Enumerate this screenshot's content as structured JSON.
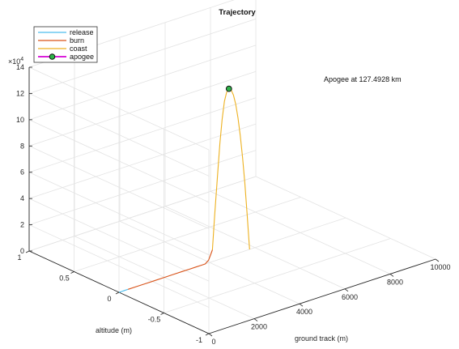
{
  "chart_data": {
    "type": "line",
    "title": "Trajectory",
    "xlabel": "ground track (m)",
    "ylabel": "altitude (m)",
    "zlabel": "",
    "z_exponent_label": "×10",
    "z_exponent_power": "4",
    "xlim": [
      0,
      10000
    ],
    "ylim": [
      -1,
      1
    ],
    "zlim": [
      0,
      140000
    ],
    "x_ticks": [
      {
        "value": 0,
        "label": "0"
      },
      {
        "value": 2000,
        "label": "2000"
      },
      {
        "value": 4000,
        "label": "4000"
      },
      {
        "value": 6000,
        "label": "6000"
      },
      {
        "value": 8000,
        "label": "8000"
      },
      {
        "value": 10000,
        "label": "10000"
      }
    ],
    "y_ticks": [
      {
        "value": -1,
        "label": "-1"
      },
      {
        "value": -0.5,
        "label": "-0.5"
      },
      {
        "value": 0,
        "label": "0"
      },
      {
        "value": 0.5,
        "label": "0.5"
      },
      {
        "value": 1,
        "label": "1"
      }
    ],
    "z_ticks": [
      {
        "value": 0,
        "label": "0"
      },
      {
        "value": 20000,
        "label": "2"
      },
      {
        "value": 40000,
        "label": "4"
      },
      {
        "value": 60000,
        "label": "6"
      },
      {
        "value": 80000,
        "label": "8"
      },
      {
        "value": 100000,
        "label": "10"
      },
      {
        "value": 120000,
        "label": "12"
      },
      {
        "value": 140000,
        "label": "14"
      }
    ],
    "grid": true,
    "legend_position": "top-left",
    "series": [
      {
        "name": "release",
        "color": "#4dbeee",
        "x": [
          0,
          100,
          200,
          300,
          400
        ],
        "y": [
          0,
          0,
          0,
          0,
          0
        ],
        "z": [
          0,
          0,
          0,
          0,
          0
        ]
      },
      {
        "name": "burn",
        "color": "#d95319",
        "x": [
          400,
          800,
          1200,
          1600,
          2000,
          2400,
          2800,
          3100,
          3400,
          3600,
          3800,
          3950,
          4050,
          4120
        ],
        "y": [
          0,
          0,
          0,
          0,
          0,
          0,
          0,
          0,
          0,
          0,
          0,
          0,
          0,
          0
        ],
        "z": [
          0,
          0,
          0,
          0,
          0,
          0,
          0,
          0,
          0,
          0,
          0,
          2000,
          6000,
          9000
        ]
      },
      {
        "name": "coast",
        "color": "#edb120",
        "x": [
          4120,
          4220,
          4350,
          4450,
          4550,
          4650,
          4750,
          4850,
          4950,
          5050,
          5150,
          5250,
          5350,
          5450,
          5550,
          5650,
          5760
        ],
        "y": [
          0,
          0,
          0,
          0,
          0,
          0,
          0,
          0,
          0,
          0,
          0,
          0,
          0,
          0,
          0,
          0,
          0
        ],
        "z": [
          9000,
          35000,
          65000,
          88000,
          106000,
          119000,
          125500,
          127493,
          126000,
          121500,
          114000,
          103000,
          89000,
          72000,
          52000,
          28000,
          0
        ]
      }
    ],
    "apogee": {
      "name": "apogee",
      "x": 4850,
      "y": 0,
      "z": 127492.8,
      "marker_face": "#2fb34a",
      "line_color": "#d400d4",
      "annotation": "Apogee at 127.4928 km"
    }
  }
}
